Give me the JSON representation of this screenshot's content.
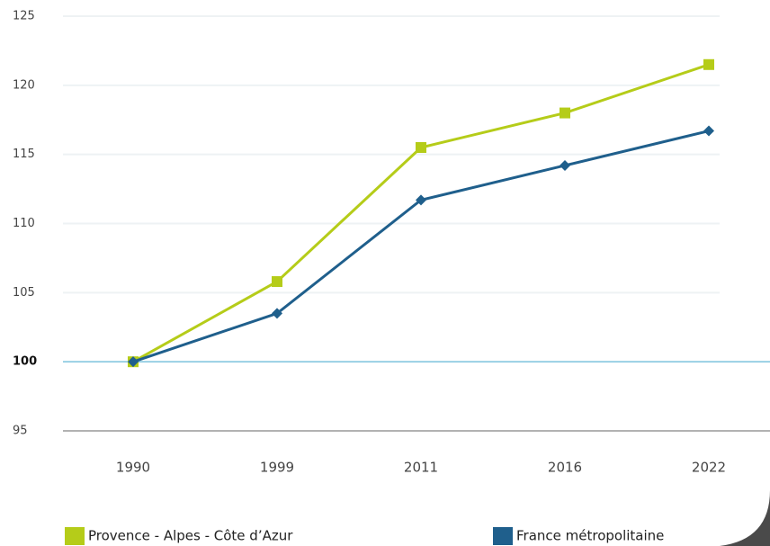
{
  "chart_data": {
    "type": "line",
    "categories": [
      "1990",
      "1999",
      "2011",
      "2016",
      "2022"
    ],
    "series": [
      {
        "name": "Provence - Alpes - Côte d’Azur",
        "color": "#b5cc19",
        "marker": "square",
        "values": [
          100,
          105.8,
          115.5,
          118,
          121.5
        ]
      },
      {
        "name": "France métropolitaine",
        "color": "#1f5f8c",
        "marker": "diamond",
        "values": [
          100,
          103.5,
          111.7,
          114.2,
          116.7
        ]
      }
    ],
    "ylim": [
      95,
      125
    ],
    "yticks": [
      95,
      100,
      105,
      110,
      115,
      120,
      125
    ],
    "grid": true,
    "reference_line": 100,
    "reference_color": "#7cc3dd"
  }
}
